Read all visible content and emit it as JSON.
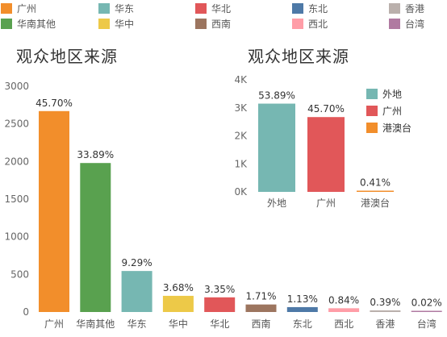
{
  "legend": {
    "items": [
      {
        "label": "广州",
        "color": "#f28e2b"
      },
      {
        "label": "华东",
        "color": "#76b7b2"
      },
      {
        "label": "华北",
        "color": "#e15759"
      },
      {
        "label": "东北",
        "color": "#4e79a7"
      },
      {
        "label": "香港",
        "color": "#bab0ac"
      },
      {
        "label": "华南其他",
        "color": "#59a14f"
      },
      {
        "label": "华中",
        "color": "#edc948"
      },
      {
        "label": "西南",
        "color": "#9c755f"
      },
      {
        "label": "西北",
        "color": "#ff9da7"
      },
      {
        "label": "台湾",
        "color": "#b07aa1"
      }
    ]
  },
  "chart_data": [
    {
      "type": "bar",
      "title": "观众地区来源",
      "categories": [
        "广州",
        "华南其他",
        "华东",
        "华中",
        "华北",
        "西南",
        "东北",
        "西北",
        "香港",
        "台湾"
      ],
      "values": [
        2670,
        1980,
        545,
        215,
        195,
        100,
        65,
        50,
        22,
        2
      ],
      "data_labels": [
        "45.70%",
        "33.89%",
        "9.29%",
        "3.68%",
        "3.35%",
        "1.71%",
        "1.13%",
        "0.84%",
        "0.39%",
        "0.02%"
      ],
      "colors": [
        "#f28e2b",
        "#59a14f",
        "#76b7b2",
        "#edc948",
        "#e15759",
        "#9c755f",
        "#4e79a7",
        "#ff9da7",
        "#bab0ac",
        "#b07aa1"
      ],
      "y_ticks": [
        0,
        500,
        1000,
        1500,
        2000,
        2500,
        3000
      ],
      "y_tick_labels": [
        "0",
        "500",
        "1000",
        "1500",
        "2000",
        "2500",
        "3000"
      ],
      "ylim": [
        0,
        3000
      ],
      "grid": false,
      "legend": "top"
    },
    {
      "type": "bar",
      "title": "观众地区来源",
      "categories": [
        "外地",
        "广州",
        "港澳台"
      ],
      "values": [
        3150,
        2670,
        24
      ],
      "data_labels": [
        "53.89%",
        "45.70%",
        "0.41%"
      ],
      "colors": [
        "#76b7b2",
        "#e15759",
        "#f28e2b"
      ],
      "y_ticks": [
        0,
        1000,
        2000,
        3000,
        4000
      ],
      "y_tick_labels": [
        "0K",
        "1K",
        "2K",
        "3K",
        "4K"
      ],
      "ylim": [
        0,
        4000
      ],
      "grid": false,
      "legend": "right",
      "legend_items": [
        {
          "label": "外地",
          "color": "#76b7b2"
        },
        {
          "label": "广州",
          "color": "#e15759"
        },
        {
          "label": "港澳台",
          "color": "#f28e2b"
        }
      ]
    }
  ]
}
